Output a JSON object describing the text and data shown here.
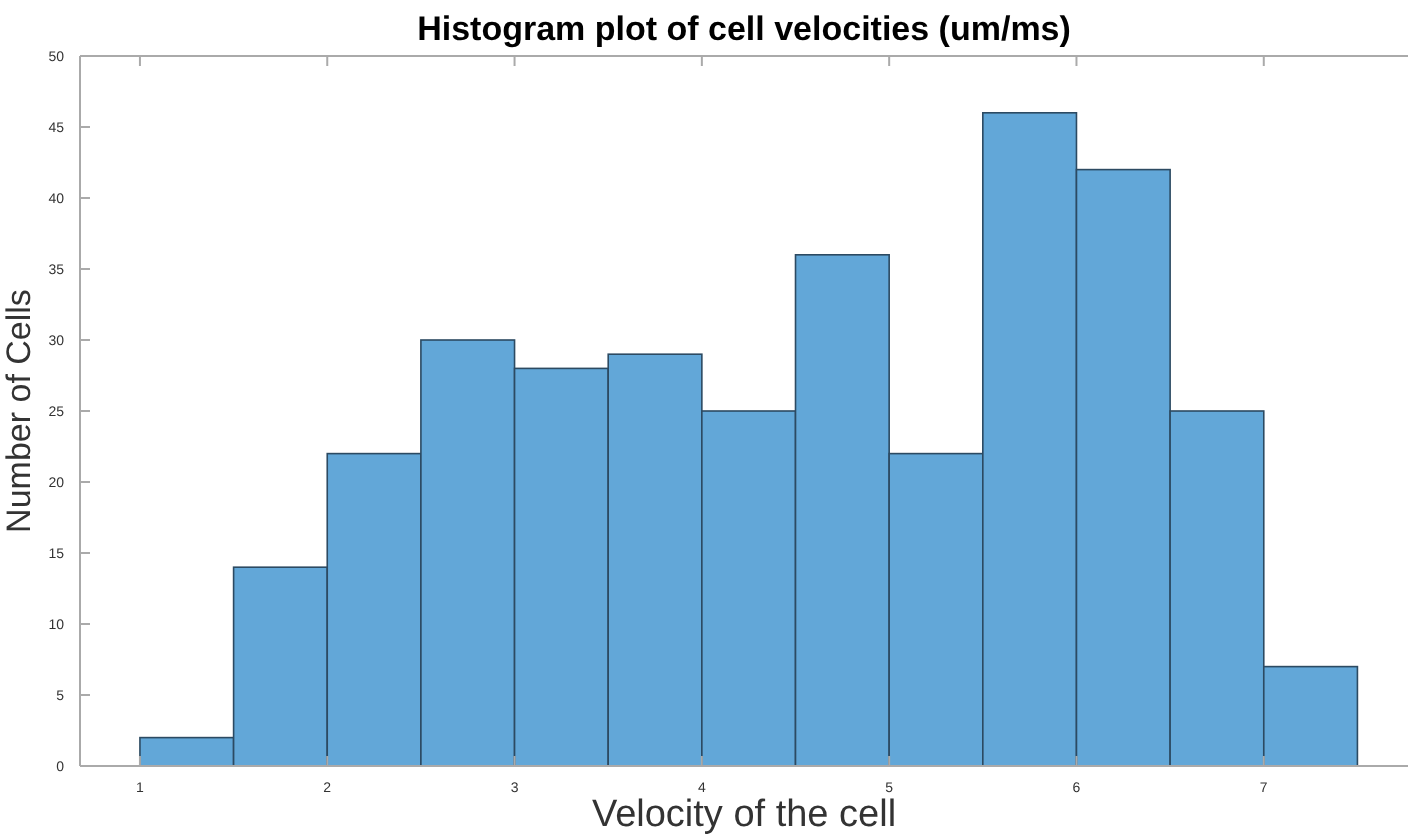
{
  "chart_data": {
    "type": "histogram",
    "title": "Histogram plot of cell velocities (um/ms)",
    "xlabel": "Velocity of the cell",
    "ylabel": "Number of Cells",
    "bins": [
      1,
      1.5,
      2,
      2.5,
      3,
      3.5,
      4,
      4.5,
      5,
      5.5,
      6,
      6.5,
      7,
      7.5
    ],
    "values": [
      2,
      14,
      22,
      30,
      28,
      29,
      25,
      36,
      22,
      46,
      42,
      25,
      7
    ],
    "color": "#62a7d8",
    "xlim": [
      0.68,
      7.77
    ],
    "xticks": [
      1,
      2,
      3,
      4,
      5,
      6,
      7
    ],
    "ylim": [
      0,
      50
    ],
    "yticks": [
      0,
      5,
      10,
      15,
      20,
      25,
      30,
      35,
      40,
      45,
      50
    ],
    "grid": false
  }
}
